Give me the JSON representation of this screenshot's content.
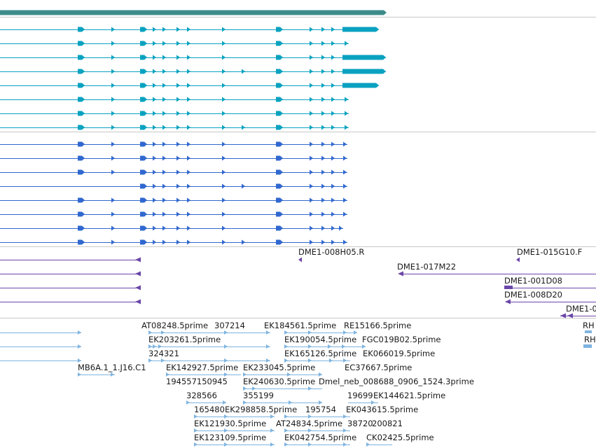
{
  "colors": {
    "background": "#ffffff",
    "separator": "#c8c8c8",
    "gene": "#3d8b8b",
    "transcript_cyan": "#0aa2c0",
    "transcript_blue": "#3168cf",
    "clone_purple": "#6a46a8",
    "est_light": "#7fb4e0"
  },
  "tracks": [
    {
      "name": "gene-span-track",
      "rows": 1
    },
    {
      "name": "transcript-track-a",
      "rows": 8
    },
    {
      "name": "transcript-track-b",
      "rows": 8
    },
    {
      "name": "clone-track",
      "rows": 5
    },
    {
      "name": "est-track",
      "rows": 9
    }
  ],
  "clone_labels": [
    "DME1-008H05.R",
    "DME1-015G10.F",
    "DME1-017M22",
    "DME1-001D08",
    "DME1-008D20",
    "DME1-0"
  ],
  "est_labels": [
    "AT08248.5prime",
    "307214",
    "EK184561.5prime",
    "RE15166.5prime",
    "RH",
    "EK203261.5prime",
    "EK190054.5prime",
    "FGC019B02.5prime",
    "RH",
    "324321",
    "EK165126.5prime",
    "EK066019.5prime",
    "MB6A.1_1.J16.C1",
    "EK142927.5prime",
    "EK233045.5prime",
    "EC37667.5prime",
    "194557150945",
    "EK240630.5prime",
    "Dmel_neb_008688_0906_1524.3prime",
    "328566",
    "355199",
    "19699",
    "EK144621.5prime",
    "165480",
    "EK298858.5prime",
    "195754",
    "EK043615.5prime",
    "EK121930.5prime",
    "AT24834.5prime",
    "38720",
    "200821",
    "EK123109.5prime",
    "EK042754.5prime",
    "CK02425.5prime"
  ]
}
